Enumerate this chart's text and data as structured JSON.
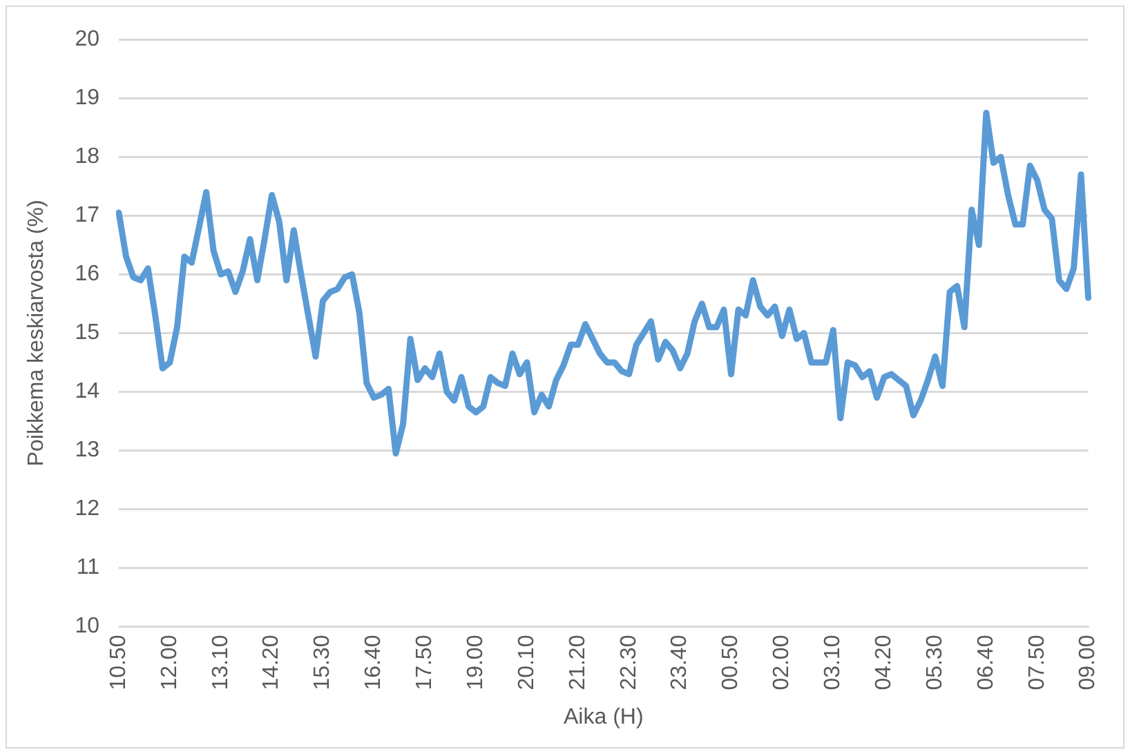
{
  "chart_data": {
    "type": "line",
    "xlabel": "Aika (H)",
    "ylabel": "Poikkema keskiarvosta (%)",
    "categories": [
      "10.50",
      null,
      null,
      null,
      null,
      null,
      null,
      "12.00",
      null,
      null,
      null,
      null,
      null,
      null,
      "13.10",
      null,
      null,
      null,
      null,
      null,
      null,
      "14.20",
      null,
      null,
      null,
      null,
      null,
      null,
      "15.30",
      null,
      null,
      null,
      null,
      null,
      null,
      "16.40",
      null,
      null,
      null,
      null,
      null,
      null,
      "17.50",
      null,
      null,
      null,
      null,
      null,
      null,
      "19.00",
      null,
      null,
      null,
      null,
      null,
      null,
      "20.10",
      null,
      null,
      null,
      null,
      null,
      null,
      "21.20",
      null,
      null,
      null,
      null,
      null,
      null,
      "22.30",
      null,
      null,
      null,
      null,
      null,
      null,
      "23.40",
      null,
      null,
      null,
      null,
      null,
      null,
      "00.50",
      null,
      null,
      null,
      null,
      null,
      null,
      "02.00",
      null,
      null,
      null,
      null,
      null,
      null,
      "03.10",
      null,
      null,
      null,
      null,
      null,
      null,
      "04.20",
      null,
      null,
      null,
      null,
      null,
      null,
      "05.30",
      null,
      null,
      null,
      null,
      null,
      null,
      "06.40",
      null,
      null,
      null,
      null,
      null,
      null,
      "07.50",
      null,
      null,
      null,
      null,
      null,
      null,
      "09.00"
    ],
    "series": [
      {
        "color": "#5b9bd5",
        "values": [
          17.05,
          16.3,
          15.95,
          15.9,
          16.1,
          15.3,
          14.4,
          14.5,
          15.1,
          16.3,
          16.2,
          16.8,
          17.4,
          16.4,
          16.0,
          16.05,
          15.7,
          16.05,
          16.6,
          15.9,
          16.6,
          17.35,
          16.9,
          15.9,
          16.75,
          16.0,
          15.3,
          14.6,
          15.55,
          15.7,
          15.75,
          15.95,
          16.0,
          15.35,
          14.15,
          13.9,
          13.95,
          14.05,
          12.95,
          13.45,
          14.9,
          14.2,
          14.4,
          14.25,
          14.65,
          14.0,
          13.85,
          14.25,
          13.75,
          13.65,
          13.75,
          14.25,
          14.15,
          14.1,
          14.65,
          14.3,
          14.5,
          13.65,
          13.95,
          13.75,
          14.2,
          14.45,
          14.8,
          14.8,
          15.15,
          14.9,
          14.65,
          14.5,
          14.5,
          14.35,
          14.3,
          14.8,
          15.0,
          15.2,
          14.55,
          14.85,
          14.7,
          14.4,
          14.65,
          15.2,
          15.5,
          15.1,
          15.1,
          15.4,
          14.3,
          15.4,
          15.3,
          15.9,
          15.45,
          15.3,
          15.45,
          14.95,
          15.4,
          14.9,
          15.0,
          14.5,
          14.5,
          14.5,
          15.05,
          13.55,
          14.5,
          14.45,
          14.25,
          14.35,
          13.9,
          14.25,
          14.3,
          14.2,
          14.1,
          13.6,
          13.85,
          14.2,
          14.6,
          14.1,
          15.7,
          15.8,
          15.1,
          17.1,
          16.5,
          18.75,
          17.9,
          18.0,
          17.35,
          16.85,
          16.85,
          17.85,
          17.6,
          17.1,
          16.95,
          15.9,
          15.75,
          16.1,
          17.7,
          15.6
        ]
      }
    ],
    "ylim": [
      10,
      20
    ],
    "yticks": [
      10,
      11,
      12,
      13,
      14,
      15,
      16,
      17,
      18,
      19,
      20
    ],
    "grid": "y",
    "legend": false,
    "marker": "none",
    "line_style": "solid"
  }
}
